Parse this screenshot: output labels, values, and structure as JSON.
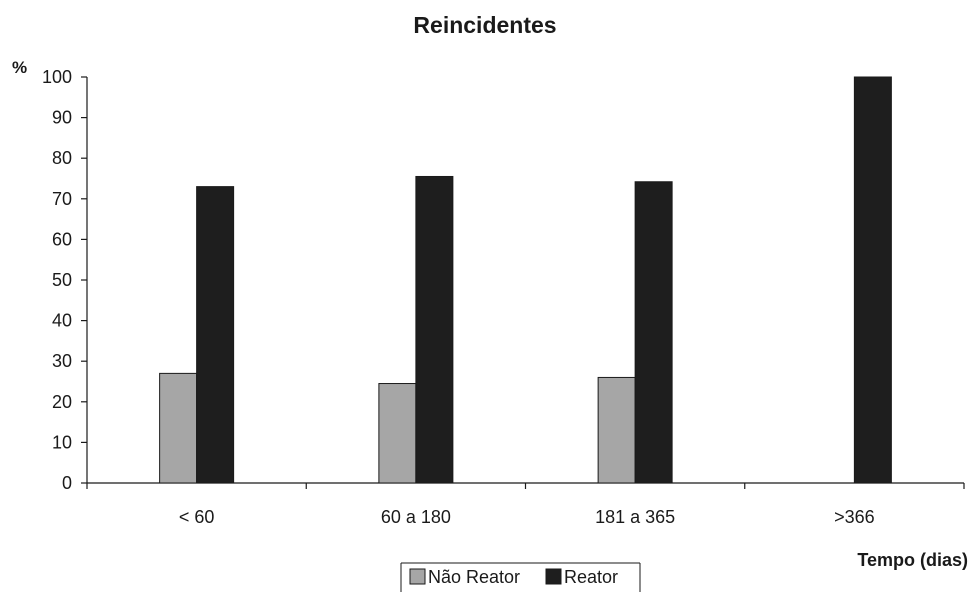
{
  "chart_data": {
    "type": "bar",
    "title": "Reincidentes",
    "ylabel": "%",
    "xlabel": "Tempo (dias)",
    "categories": [
      "< 60",
      "60 a 180",
      "181 a 365",
      ">366"
    ],
    "series": [
      {
        "name": "Não Reator",
        "values": [
          27,
          24.5,
          26,
          0
        ],
        "color": "#a6a6a6"
      },
      {
        "name": "Reator",
        "values": [
          73,
          75.5,
          74.2,
          100
        ],
        "color": "#1e1e1e"
      }
    ],
    "ylim": [
      0,
      100
    ],
    "yticks": [
      0,
      10,
      20,
      30,
      40,
      50,
      60,
      70,
      80,
      90,
      100
    ],
    "grid": false,
    "legend_position": "bottom-center"
  }
}
